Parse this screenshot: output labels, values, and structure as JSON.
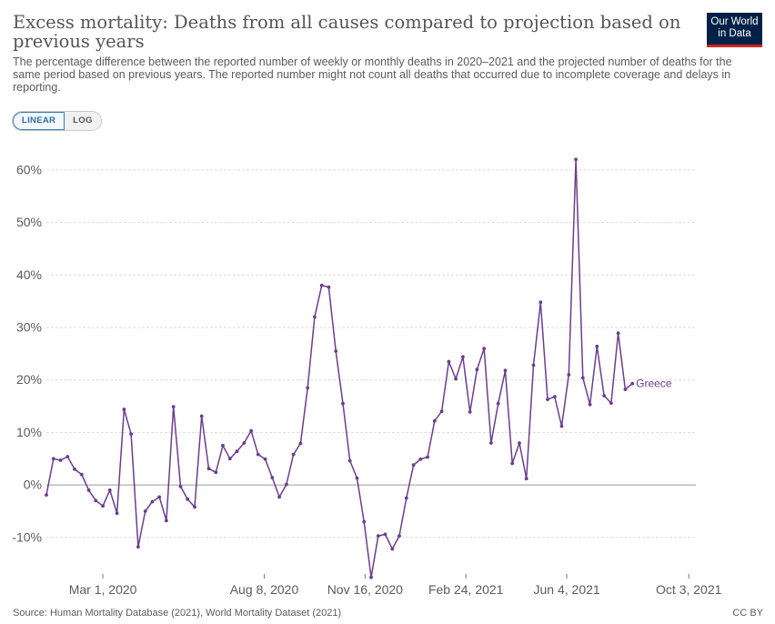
{
  "header": {
    "title": "Excess mortality: Deaths from all causes compared to projection based on previous years",
    "subtitle": "The percentage difference between the reported number of weekly or monthly deaths in 2020–2021 and the projected number of deaths for the same period based on previous years. The reported number might not count all deaths that occurred due to incomplete coverage and delays in reporting.",
    "logo_line1": "Our World",
    "logo_line2": "in Data"
  },
  "controls": {
    "linear_label": "LINEAR",
    "log_label": "LOG",
    "selected": "LINEAR"
  },
  "footer": {
    "source": "Source: Human Mortality Database (2021), World Mortality Dataset (2021)",
    "license": "CC BY"
  },
  "colors": {
    "series": "#6b3d8e",
    "grid": "#dddddd",
    "zero_line": "#9a9a9a",
    "text": "#5b5b5b"
  },
  "chart_data": {
    "type": "line",
    "title": "Excess mortality: Deaths from all causes compared to projection based on previous years",
    "xlabel": "",
    "ylabel": "",
    "x_start": "2020-01-05",
    "x_interval_days": 7,
    "xlim": [
      "2020-01-05",
      "2021-10-10"
    ],
    "ylim": [
      -18,
      65
    ],
    "y_ticks": [
      -10,
      0,
      10,
      20,
      30,
      40,
      50,
      60
    ],
    "y_tick_labels": [
      "-10%",
      "0%",
      "10%",
      "20%",
      "30%",
      "40%",
      "50%",
      "60%"
    ],
    "x_ticks": [
      "2020-03-01",
      "2020-08-08",
      "2020-11-16",
      "2021-02-24",
      "2021-06-04",
      "2021-10-03"
    ],
    "x_tick_labels": [
      "Mar 1, 2020",
      "Aug 8, 2020",
      "Nov 16, 2020",
      "Feb 24, 2021",
      "Jun 4, 2021",
      "Oct 3, 2021"
    ],
    "grid": "horizontal dashed",
    "legend": "inline label at end of line",
    "series": [
      {
        "name": "Greece",
        "values": [
          -1.9,
          5.0,
          4.7,
          5.4,
          3.0,
          2.0,
          -1.0,
          -3.0,
          -4.0,
          -1.0,
          -5.4,
          14.4,
          9.7,
          -11.8,
          -5.0,
          -3.2,
          -2.3,
          -6.8,
          14.9,
          -0.3,
          -2.7,
          -4.2,
          13.1,
          3.1,
          2.4,
          7.5,
          5.0,
          6.4,
          8.0,
          10.3,
          5.8,
          4.9,
          1.4,
          -2.3,
          0.1,
          5.8,
          7.9,
          18.5,
          32.0,
          38.0,
          37.7,
          25.5,
          15.5,
          4.6,
          1.3,
          -7.0,
          -17.6,
          -9.7,
          -9.4,
          -12.2,
          -9.7,
          -2.5,
          3.8,
          4.9,
          5.3,
          12.2,
          14.0,
          23.5,
          20.2,
          24.4,
          13.9,
          22.0,
          26.0,
          8.0,
          15.5,
          21.8,
          4.1,
          8.0,
          1.2,
          22.8,
          34.8,
          16.3,
          16.8,
          11.2,
          21.0,
          62.0,
          20.4,
          15.3,
          26.4,
          17.0,
          15.6,
          28.9,
          18.2,
          19.3
        ]
      }
    ]
  }
}
